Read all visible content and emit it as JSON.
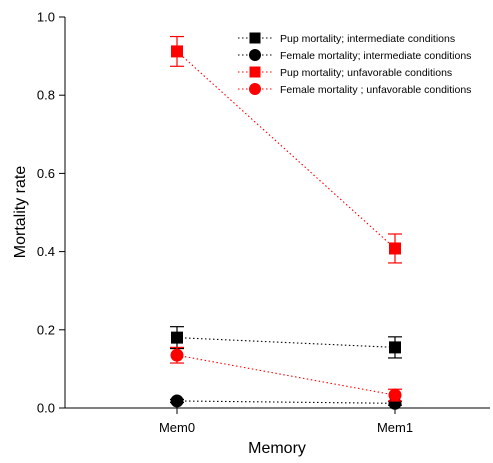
{
  "chart_data": {
    "type": "line",
    "xlabel": "Memory",
    "ylabel": "Mortality rate",
    "categories": [
      "Mem0",
      "Mem1"
    ],
    "ylim": [
      0.0,
      1.0
    ],
    "yticks": [
      "0.0",
      "0.2",
      "0.4",
      "0.6",
      "0.8",
      "1.0"
    ],
    "grid": false,
    "legend_position": "top-right",
    "series": [
      {
        "name": "Pup mortality; intermediate conditions",
        "marker": "square",
        "color": "#000000",
        "values": [
          0.18,
          0.155
        ],
        "errors": [
          0.028,
          0.027
        ]
      },
      {
        "name": "Female mortality; intermediate conditions",
        "marker": "circle",
        "color": "#000000",
        "values": [
          0.018,
          0.012
        ],
        "errors": [
          0.004,
          0.005
        ]
      },
      {
        "name": "Pup mortality; unfavorable conditions",
        "marker": "square",
        "color": "#ff0000",
        "values": [
          0.912,
          0.408
        ],
        "errors": [
          0.038,
          0.037
        ]
      },
      {
        "name": "Female mortality ; unfavorable conditions",
        "marker": "circle",
        "color": "#ff0000",
        "values": [
          0.135,
          0.033
        ],
        "errors": [
          0.02,
          0.015
        ]
      }
    ]
  }
}
